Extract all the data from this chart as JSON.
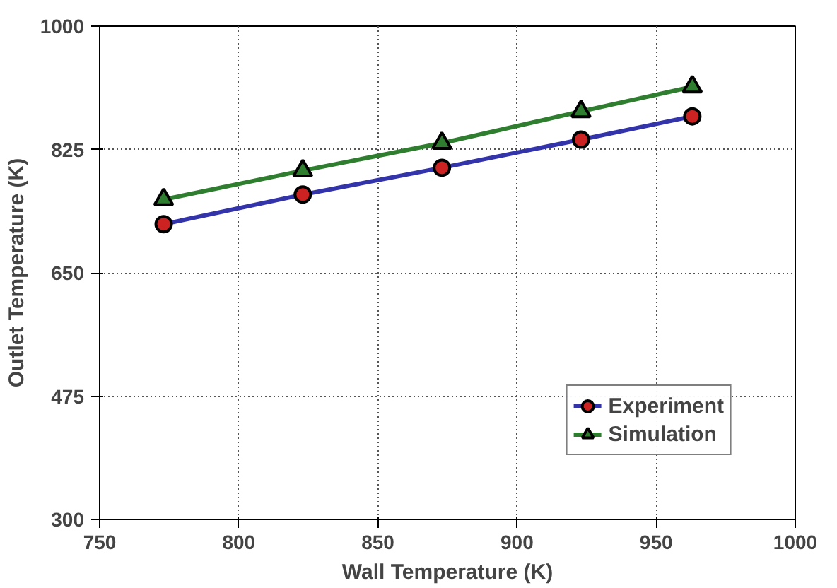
{
  "chart_data": {
    "type": "line",
    "xlabel": "Wall Temperature (K)",
    "ylabel": "Outlet Temperature (K)",
    "x": [
      773,
      823,
      873,
      923,
      963
    ],
    "series": [
      {
        "name": "Experiment",
        "color": "#3333aa",
        "values": [
          719,
          761,
          799,
          839,
          872
        ],
        "marker": "circle"
      },
      {
        "name": "Simulation",
        "color": "#2f7d2f",
        "values": [
          754,
          795,
          834,
          879,
          914
        ],
        "marker": "triangle"
      }
    ],
    "xlim": [
      750,
      1000
    ],
    "xticks": [
      750,
      800,
      850,
      900,
      950,
      1000
    ],
    "ylim": [
      300,
      1000
    ],
    "yticks": [
      300,
      475,
      650,
      825,
      1000
    ],
    "grid": true,
    "legend": "bottom right",
    "line_style": "solid"
  }
}
